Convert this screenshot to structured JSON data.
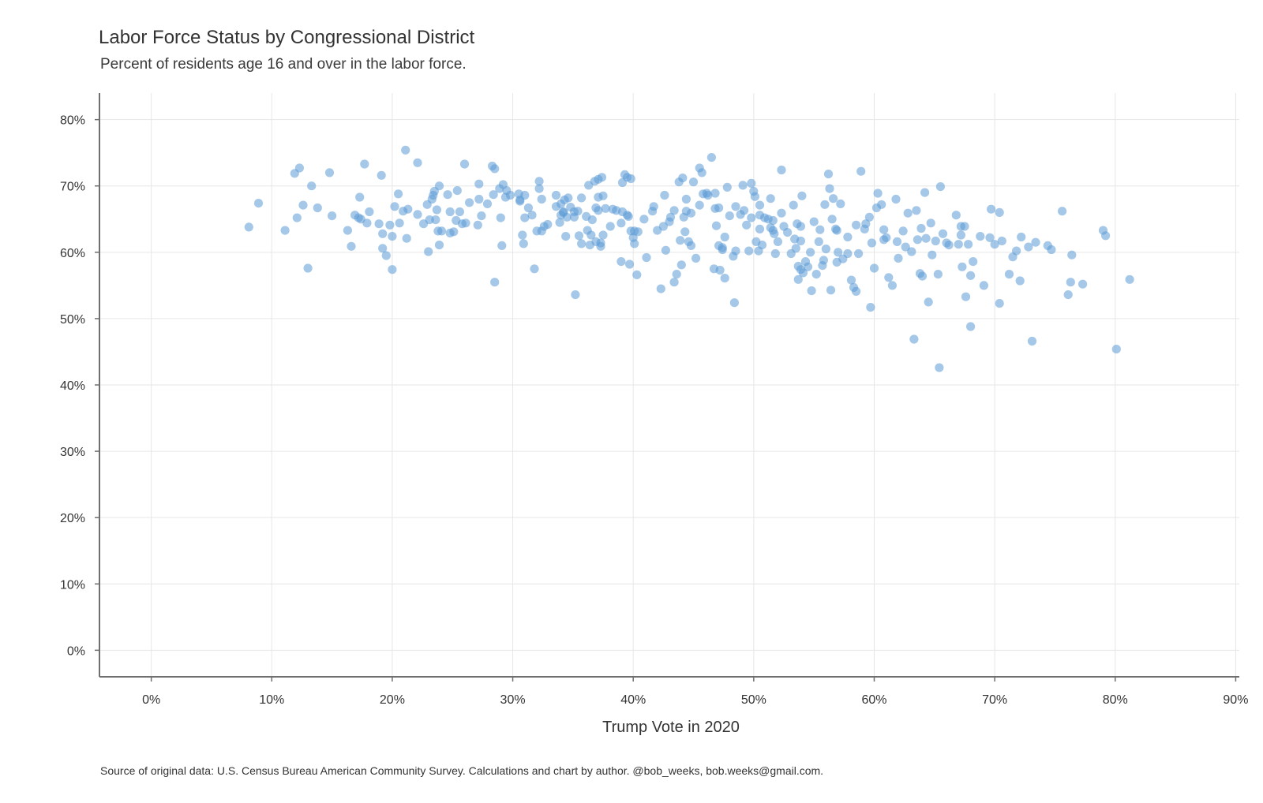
{
  "chart_data": {
    "type": "scatter",
    "title": "Labor Force Status by Congressional District",
    "subtitle": "Percent of residents age 16 and over in the labor force.",
    "xlabel": "Trump Vote in 2020",
    "ylabel": "",
    "caption": "Source of original data: U.S. Census Bureau American Community Survey. Calculations and chart by author. @bob_weeks, bob.weeks@gmail.com.",
    "xlim": [
      -4.3,
      90.3
    ],
    "ylim": [
      -4,
      84
    ],
    "x_ticks": [
      0,
      10,
      20,
      30,
      40,
      50,
      60,
      70,
      80,
      90
    ],
    "x_tick_labels": [
      "0%",
      "10%",
      "20%",
      "30%",
      "40%",
      "50%",
      "60%",
      "70%",
      "80%",
      "90%"
    ],
    "y_ticks": [
      0,
      10,
      20,
      30,
      40,
      50,
      60,
      70,
      80
    ],
    "y_tick_labels": [
      "0%",
      "10%",
      "20%",
      "30%",
      "40%",
      "50%",
      "60%",
      "70%",
      "80%"
    ],
    "grid": true,
    "point_color": "#5b9bd5",
    "point_opacity": 0.55,
    "points": [
      [
        8.1,
        63.8
      ],
      [
        8.9,
        67.4
      ],
      [
        11.1,
        63.3
      ],
      [
        11.9,
        71.9
      ],
      [
        12.1,
        65.2
      ],
      [
        12.3,
        72.7
      ],
      [
        12.6,
        67.1
      ],
      [
        13.0,
        57.6
      ],
      [
        13.3,
        70.0
      ],
      [
        13.8,
        66.7
      ],
      [
        14.8,
        72.0
      ],
      [
        15.0,
        65.5
      ],
      [
        16.3,
        63.3
      ],
      [
        16.6,
        60.9
      ],
      [
        16.9,
        65.6
      ],
      [
        17.3,
        68.3
      ],
      [
        17.4,
        65.0
      ],
      [
        17.7,
        73.3
      ],
      [
        17.9,
        64.4
      ],
      [
        18.1,
        66.1
      ],
      [
        18.9,
        64.3
      ],
      [
        19.1,
        71.6
      ],
      [
        19.2,
        60.6
      ],
      [
        19.2,
        62.8
      ],
      [
        19.5,
        59.5
      ],
      [
        19.8,
        64.1
      ],
      [
        20.0,
        62.4
      ],
      [
        20.0,
        57.4
      ],
      [
        20.2,
        66.9
      ],
      [
        20.5,
        68.8
      ],
      [
        20.6,
        64.4
      ],
      [
        20.9,
        66.2
      ],
      [
        21.1,
        75.4
      ],
      [
        21.2,
        62.1
      ],
      [
        21.3,
        66.5
      ],
      [
        22.1,
        73.5
      ],
      [
        22.1,
        65.7
      ],
      [
        22.6,
        64.3
      ],
      [
        22.9,
        67.2
      ],
      [
        23.0,
        60.1
      ],
      [
        23.1,
        64.9
      ],
      [
        23.3,
        68.0
      ],
      [
        23.4,
        68.6
      ],
      [
        23.5,
        69.2
      ],
      [
        23.6,
        64.9
      ],
      [
        23.7,
        66.4
      ],
      [
        23.8,
        63.2
      ],
      [
        23.9,
        61.1
      ],
      [
        23.9,
        70.0
      ],
      [
        24.1,
        63.2
      ],
      [
        24.6,
        68.7
      ],
      [
        24.8,
        66.1
      ],
      [
        24.8,
        62.9
      ],
      [
        25.1,
        63.1
      ],
      [
        25.3,
        64.8
      ],
      [
        25.4,
        69.3
      ],
      [
        25.6,
        66.1
      ],
      [
        25.8,
        64.3
      ],
      [
        26.0,
        73.3
      ],
      [
        26.4,
        67.5
      ],
      [
        27.1,
        64.1
      ],
      [
        27.2,
        70.3
      ],
      [
        27.2,
        68.0
      ],
      [
        27.4,
        65.5
      ],
      [
        27.9,
        67.3
      ],
      [
        28.3,
        73.0
      ],
      [
        28.4,
        68.7
      ],
      [
        28.5,
        55.5
      ],
      [
        28.5,
        72.6
      ],
      [
        28.9,
        69.6
      ],
      [
        29.0,
        65.2
      ],
      [
        29.1,
        61.0
      ],
      [
        29.2,
        70.2
      ],
      [
        29.4,
        68.3
      ],
      [
        29.5,
        69.3
      ],
      [
        29.8,
        68.6
      ],
      [
        30.5,
        68.8
      ],
      [
        30.6,
        67.9
      ],
      [
        30.8,
        62.6
      ],
      [
        30.9,
        61.3
      ],
      [
        31.0,
        68.6
      ],
      [
        31.0,
        65.2
      ],
      [
        31.3,
        66.7
      ],
      [
        31.6,
        65.6
      ],
      [
        31.8,
        57.5
      ],
      [
        32.0,
        63.2
      ],
      [
        32.2,
        70.7
      ],
      [
        32.2,
        69.6
      ],
      [
        32.4,
        68.0
      ],
      [
        32.4,
        63.2
      ],
      [
        32.6,
        63.9
      ],
      [
        32.9,
        64.2
      ],
      [
        33.6,
        66.9
      ],
      [
        33.6,
        68.6
      ],
      [
        33.9,
        64.5
      ],
      [
        34.0,
        67.3
      ],
      [
        34.0,
        65.6
      ],
      [
        34.2,
        66.1
      ],
      [
        34.3,
        67.9
      ],
      [
        34.4,
        62.4
      ],
      [
        34.5,
        65.3
      ],
      [
        34.6,
        68.2
      ],
      [
        34.8,
        66.8
      ],
      [
        35.1,
        65.3
      ],
      [
        35.2,
        53.6
      ],
      [
        35.4,
        66.2
      ],
      [
        35.5,
        62.5
      ],
      [
        35.7,
        61.3
      ],
      [
        35.7,
        68.2
      ],
      [
        36.1,
        65.4
      ],
      [
        36.2,
        63.3
      ],
      [
        36.3,
        70.1
      ],
      [
        36.4,
        61.1
      ],
      [
        36.5,
        62.6
      ],
      [
        36.6,
        64.9
      ],
      [
        36.8,
        70.7
      ],
      [
        36.9,
        66.7
      ],
      [
        36.9,
        61.6
      ],
      [
        37.1,
        68.3
      ],
      [
        37.1,
        66.3
      ],
      [
        37.1,
        71.0
      ],
      [
        37.3,
        61.4
      ],
      [
        37.3,
        60.9
      ],
      [
        37.4,
        71.3
      ],
      [
        37.5,
        62.6
      ],
      [
        37.5,
        68.5
      ],
      [
        37.7,
        66.6
      ],
      [
        38.1,
        63.9
      ],
      [
        38.3,
        66.5
      ],
      [
        38.6,
        66.3
      ],
      [
        39.0,
        64.4
      ],
      [
        39.0,
        58.6
      ],
      [
        39.1,
        66.1
      ],
      [
        39.1,
        70.5
      ],
      [
        39.3,
        71.7
      ],
      [
        39.5,
        65.6
      ],
      [
        39.5,
        71.3
      ],
      [
        39.7,
        58.2
      ],
      [
        39.8,
        63.2
      ],
      [
        39.8,
        71.1
      ],
      [
        40.0,
        62.2
      ],
      [
        40.1,
        61.3
      ],
      [
        40.1,
        63.2
      ],
      [
        40.3,
        56.6
      ],
      [
        40.4,
        63.1
      ],
      [
        40.9,
        65.0
      ],
      [
        41.1,
        59.2
      ],
      [
        41.6,
        66.2
      ],
      [
        41.7,
        66.9
      ],
      [
        42.0,
        63.3
      ],
      [
        42.3,
        54.5
      ],
      [
        42.5,
        63.9
      ],
      [
        42.6,
        68.6
      ],
      [
        42.7,
        60.3
      ],
      [
        43.0,
        64.6
      ],
      [
        43.1,
        65.3
      ],
      [
        43.4,
        55.5
      ],
      [
        43.4,
        66.3
      ],
      [
        43.6,
        56.7
      ],
      [
        43.8,
        70.6
      ],
      [
        43.9,
        61.8
      ],
      [
        44.0,
        58.1
      ],
      [
        44.1,
        71.2
      ],
      [
        44.2,
        65.3
      ],
      [
        44.3,
        63.1
      ],
      [
        44.4,
        66.2
      ],
      [
        44.4,
        68.0
      ],
      [
        44.6,
        61.6
      ],
      [
        44.8,
        65.9
      ],
      [
        45.0,
        70.6
      ],
      [
        45.2,
        59.1
      ],
      [
        45.5,
        72.7
      ],
      [
        45.5,
        67.1
      ],
      [
        45.7,
        72.0
      ],
      [
        45.8,
        68.8
      ],
      [
        46.1,
        68.9
      ],
      [
        46.2,
        68.6
      ],
      [
        46.5,
        74.3
      ],
      [
        46.7,
        57.5
      ],
      [
        46.8,
        66.6
      ],
      [
        46.8,
        68.9
      ],
      [
        46.9,
        64.0
      ],
      [
        47.1,
        61.0
      ],
      [
        47.1,
        66.7
      ],
      [
        47.2,
        57.3
      ],
      [
        47.4,
        60.4
      ],
      [
        47.6,
        62.3
      ],
      [
        47.6,
        56.1
      ],
      [
        47.8,
        69.8
      ],
      [
        48.0,
        65.5
      ],
      [
        48.3,
        59.4
      ],
      [
        48.4,
        52.4
      ],
      [
        48.5,
        60.2
      ],
      [
        48.5,
        66.9
      ],
      [
        48.9,
        65.7
      ],
      [
        49.1,
        70.1
      ],
      [
        49.2,
        66.3
      ],
      [
        49.6,
        60.2
      ],
      [
        49.8,
        70.4
      ],
      [
        49.8,
        65.2
      ],
      [
        50.0,
        69.2
      ],
      [
        50.1,
        68.4
      ],
      [
        50.2,
        61.6
      ],
      [
        50.4,
        60.2
      ],
      [
        50.5,
        67.1
      ],
      [
        50.5,
        63.5
      ],
      [
        50.5,
        65.6
      ],
      [
        50.7,
        61.1
      ],
      [
        50.9,
        65.2
      ],
      [
        51.2,
        65.0
      ],
      [
        51.4,
        68.1
      ],
      [
        51.4,
        63.7
      ],
      [
        51.6,
        64.8
      ],
      [
        51.7,
        62.8
      ],
      [
        51.8,
        59.8
      ],
      [
        52.0,
        61.6
      ],
      [
        52.3,
        72.4
      ],
      [
        52.3,
        65.9
      ],
      [
        52.5,
        63.9
      ],
      [
        52.8,
        63.0
      ],
      [
        53.1,
        59.8
      ],
      [
        53.3,
        67.1
      ],
      [
        53.4,
        62.0
      ],
      [
        53.5,
        60.6
      ],
      [
        53.6,
        64.3
      ],
      [
        53.7,
        57.9
      ],
      [
        53.7,
        55.9
      ],
      [
        53.9,
        57.4
      ],
      [
        53.9,
        63.9
      ],
      [
        54.0,
        68.5
      ],
      [
        54.1,
        56.9
      ],
      [
        54.3,
        58.6
      ],
      [
        54.5,
        57.8
      ],
      [
        54.7,
        60.0
      ],
      [
        54.8,
        54.2
      ],
      [
        55.0,
        64.6
      ],
      [
        55.2,
        56.7
      ],
      [
        55.5,
        63.4
      ],
      [
        55.7,
        58.0
      ],
      [
        55.8,
        58.8
      ],
      [
        56.0,
        60.5
      ],
      [
        56.2,
        71.8
      ],
      [
        56.3,
        69.6
      ],
      [
        56.4,
        54.3
      ],
      [
        56.5,
        65.0
      ],
      [
        56.6,
        68.1
      ],
      [
        56.8,
        63.5
      ],
      [
        56.9,
        58.5
      ],
      [
        57.0,
        60.0
      ],
      [
        57.2,
        67.3
      ],
      [
        57.4,
        59.0
      ],
      [
        57.8,
        62.3
      ],
      [
        58.1,
        55.8
      ],
      [
        58.3,
        54.7
      ],
      [
        58.5,
        54.1
      ],
      [
        58.7,
        59.8
      ],
      [
        58.9,
        72.2
      ],
      [
        59.2,
        63.5
      ],
      [
        59.3,
        64.3
      ],
      [
        59.6,
        65.3
      ],
      [
        59.7,
        51.7
      ],
      [
        59.8,
        61.4
      ],
      [
        60.0,
        57.6
      ],
      [
        60.2,
        66.7
      ],
      [
        60.3,
        68.9
      ],
      [
        60.6,
        67.2
      ],
      [
        60.8,
        63.4
      ],
      [
        61.0,
        62.2
      ],
      [
        61.2,
        56.2
      ],
      [
        61.5,
        55.0
      ],
      [
        61.8,
        68.0
      ],
      [
        61.9,
        61.6
      ],
      [
        62.0,
        59.1
      ],
      [
        62.6,
        60.8
      ],
      [
        62.8,
        65.9
      ],
      [
        63.1,
        60.1
      ],
      [
        63.3,
        46.9
      ],
      [
        63.6,
        61.9
      ],
      [
        63.8,
        56.8
      ],
      [
        63.9,
        63.6
      ],
      [
        64.0,
        56.4
      ],
      [
        64.2,
        69.0
      ],
      [
        64.3,
        62.1
      ],
      [
        64.5,
        52.5
      ],
      [
        64.8,
        59.6
      ],
      [
        65.1,
        61.7
      ],
      [
        65.3,
        56.7
      ],
      [
        65.4,
        42.6
      ],
      [
        65.5,
        69.9
      ],
      [
        65.7,
        62.8
      ],
      [
        66.0,
        61.4
      ],
      [
        66.8,
        65.6
      ],
      [
        67.0,
        61.2
      ],
      [
        67.2,
        62.6
      ],
      [
        67.3,
        57.8
      ],
      [
        67.5,
        63.9
      ],
      [
        67.6,
        53.3
      ],
      [
        67.8,
        61.2
      ],
      [
        68.0,
        48.8
      ],
      [
        68.2,
        58.6
      ],
      [
        68.8,
        62.4
      ],
      [
        69.1,
        55.0
      ],
      [
        69.7,
        66.5
      ],
      [
        70.0,
        61.2
      ],
      [
        70.4,
        66.0
      ],
      [
        70.4,
        52.3
      ],
      [
        70.6,
        61.7
      ],
      [
        71.2,
        56.7
      ],
      [
        71.5,
        59.3
      ],
      [
        71.8,
        60.2
      ],
      [
        72.1,
        55.7
      ],
      [
        72.2,
        62.3
      ],
      [
        72.8,
        60.8
      ],
      [
        73.1,
        46.6
      ],
      [
        73.4,
        61.5
      ],
      [
        74.4,
        61.0
      ],
      [
        74.7,
        60.4
      ],
      [
        75.6,
        66.2
      ],
      [
        76.1,
        53.6
      ],
      [
        76.3,
        55.5
      ],
      [
        76.4,
        59.6
      ],
      [
        77.3,
        55.2
      ],
      [
        79.0,
        63.3
      ],
      [
        79.2,
        62.5
      ],
      [
        80.1,
        45.4
      ],
      [
        81.2,
        55.9
      ],
      [
        17.2,
        65.2
      ],
      [
        26.1,
        64.4
      ],
      [
        30.6,
        67.7
      ],
      [
        34.2,
        66.0
      ],
      [
        35.1,
        66.1
      ],
      [
        39.6,
        65.4
      ],
      [
        44.8,
        61.0
      ],
      [
        47.4,
        60.7
      ],
      [
        49.4,
        64.1
      ],
      [
        51.6,
        63.3
      ],
      [
        55.4,
        61.6
      ],
      [
        56.9,
        63.3
      ],
      [
        57.8,
        59.8
      ],
      [
        60.8,
        61.9
      ],
      [
        62.4,
        63.2
      ],
      [
        63.5,
        66.3
      ],
      [
        64.7,
        64.4
      ],
      [
        66.2,
        61.1
      ],
      [
        67.2,
        63.9
      ],
      [
        68.0,
        56.5
      ],
      [
        69.6,
        62.2
      ],
      [
        58.5,
        64.1
      ],
      [
        55.9,
        67.2
      ],
      [
        53.9,
        61.7
      ]
    ]
  }
}
